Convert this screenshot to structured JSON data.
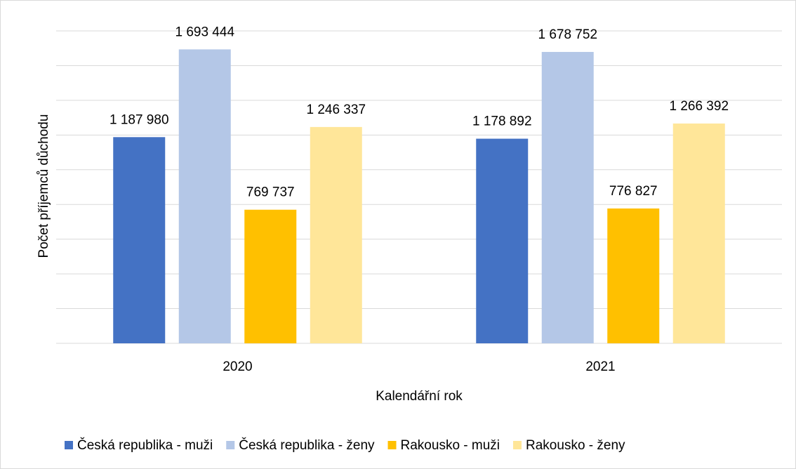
{
  "chart_data": {
    "type": "bar",
    "x_label": "Kalendářní rok",
    "y_label": "Počet příjemců důchodu",
    "categories": [
      "2020",
      "2021"
    ],
    "series": [
      {
        "name": "Česká republika - muži",
        "color": "#4472c4",
        "values": [
          1187980,
          1178892
        ],
        "value_labels": [
          "1 187 980",
          "1 178 892"
        ]
      },
      {
        "name": "Česká republika - ženy",
        "color": "#b4c7e7",
        "values": [
          1693444,
          1678752
        ],
        "value_labels": [
          "1 693 444",
          "1 678 752"
        ]
      },
      {
        "name": "Rakousko - muži",
        "color": "#ffc000",
        "values": [
          769737,
          776827
        ],
        "value_labels": [
          "769 737",
          "776 827"
        ]
      },
      {
        "name": "Rakousko - ženy",
        "color": "#ffe699",
        "values": [
          1246337,
          1266392
        ],
        "value_labels": [
          "1 246 337",
          "1 266 392"
        ]
      }
    ],
    "ylim": [
      0,
      1800000
    ],
    "yticks": [
      0,
      200000,
      400000,
      600000,
      800000,
      1000000,
      1200000,
      1400000,
      1600000,
      1800000
    ],
    "grid": true,
    "legend": "bottom"
  }
}
